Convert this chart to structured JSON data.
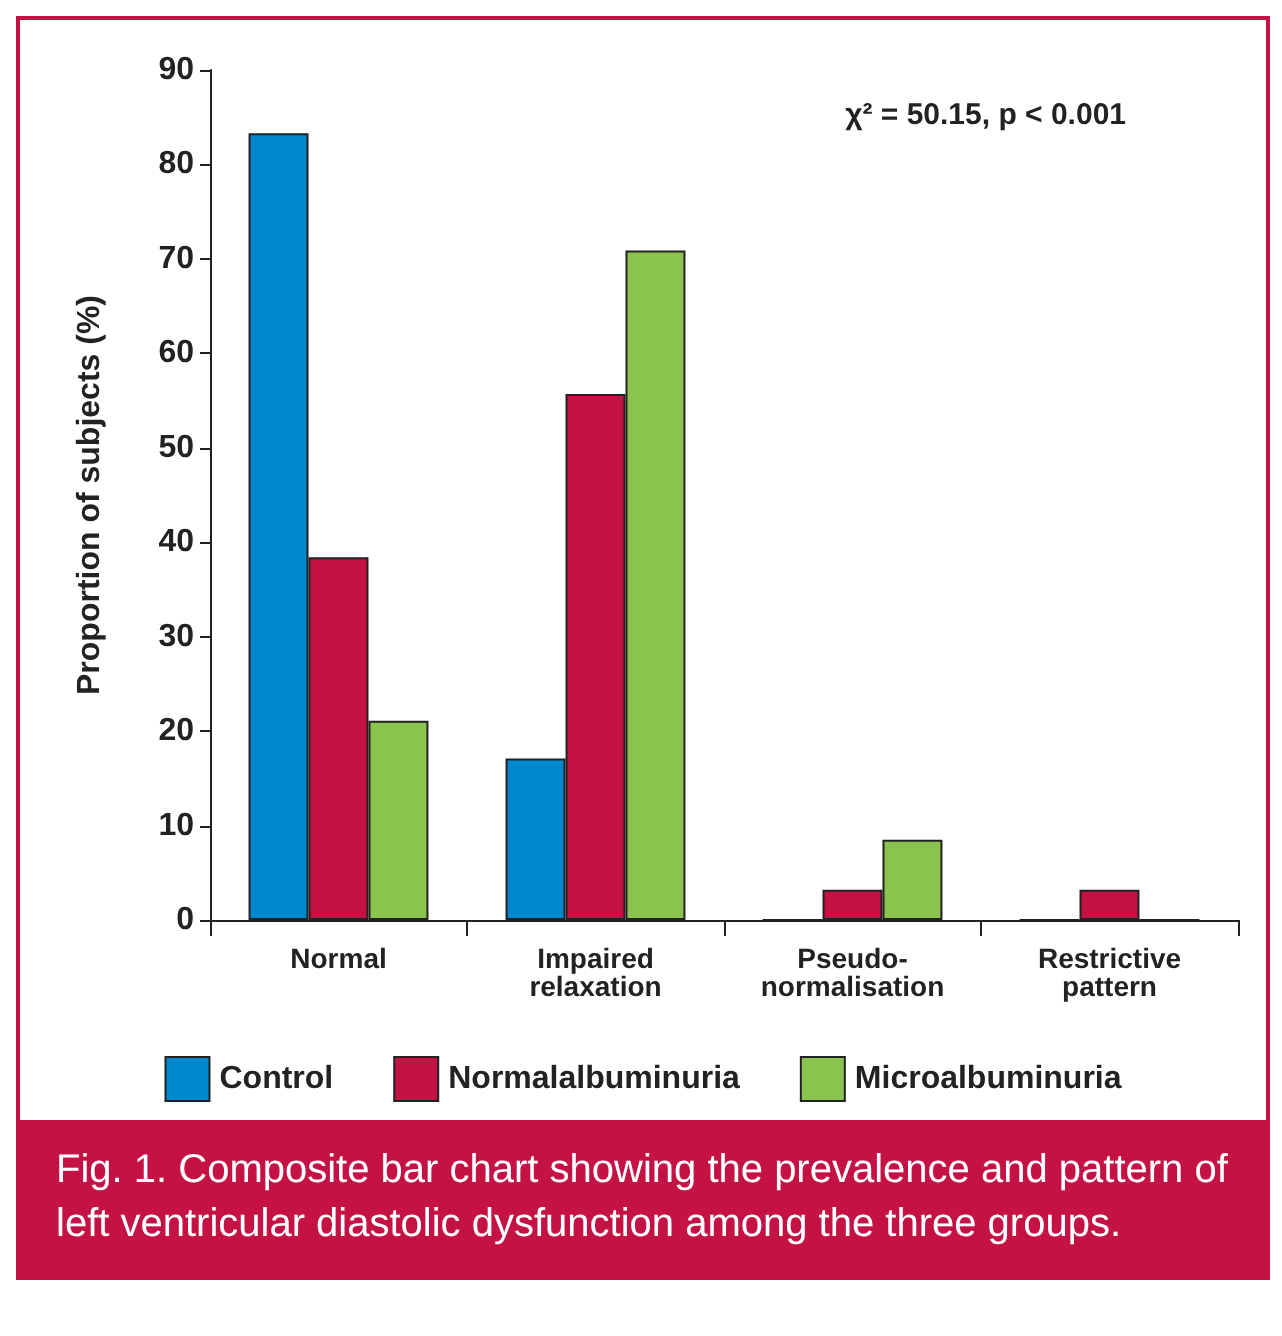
{
  "chart_data": {
    "type": "bar",
    "ylabel": "Proportion of subjects (%)",
    "categories": [
      "Normal",
      "Impaired relaxation",
      "Pseudo-normalisation",
      "Restrictive pattern"
    ],
    "series": [
      {
        "name": "Control",
        "color": "#0088cf",
        "values": [
          83.3,
          17.1,
          0,
          0
        ]
      },
      {
        "name": "Normalalbuminuria",
        "color": "#c41244",
        "values": [
          38.4,
          55.7,
          3.2,
          3.2
        ]
      },
      {
        "name": "Microalbuminuria",
        "color": "#8bc34f",
        "values": [
          21.1,
          70.9,
          8.5,
          0
        ]
      }
    ],
    "ylim": [
      0,
      90
    ],
    "yticks": [
      0,
      10,
      20,
      30,
      40,
      50,
      60,
      70,
      80,
      90
    ],
    "grid": false,
    "legend": "bottom",
    "annotations": [
      "χ² = 50.15, p < 0.001",
      "Fig. 1. Composite bar chart showing the prevalence and pattern of left ventricular diastolic dysfunction among the three groups."
    ]
  }
}
